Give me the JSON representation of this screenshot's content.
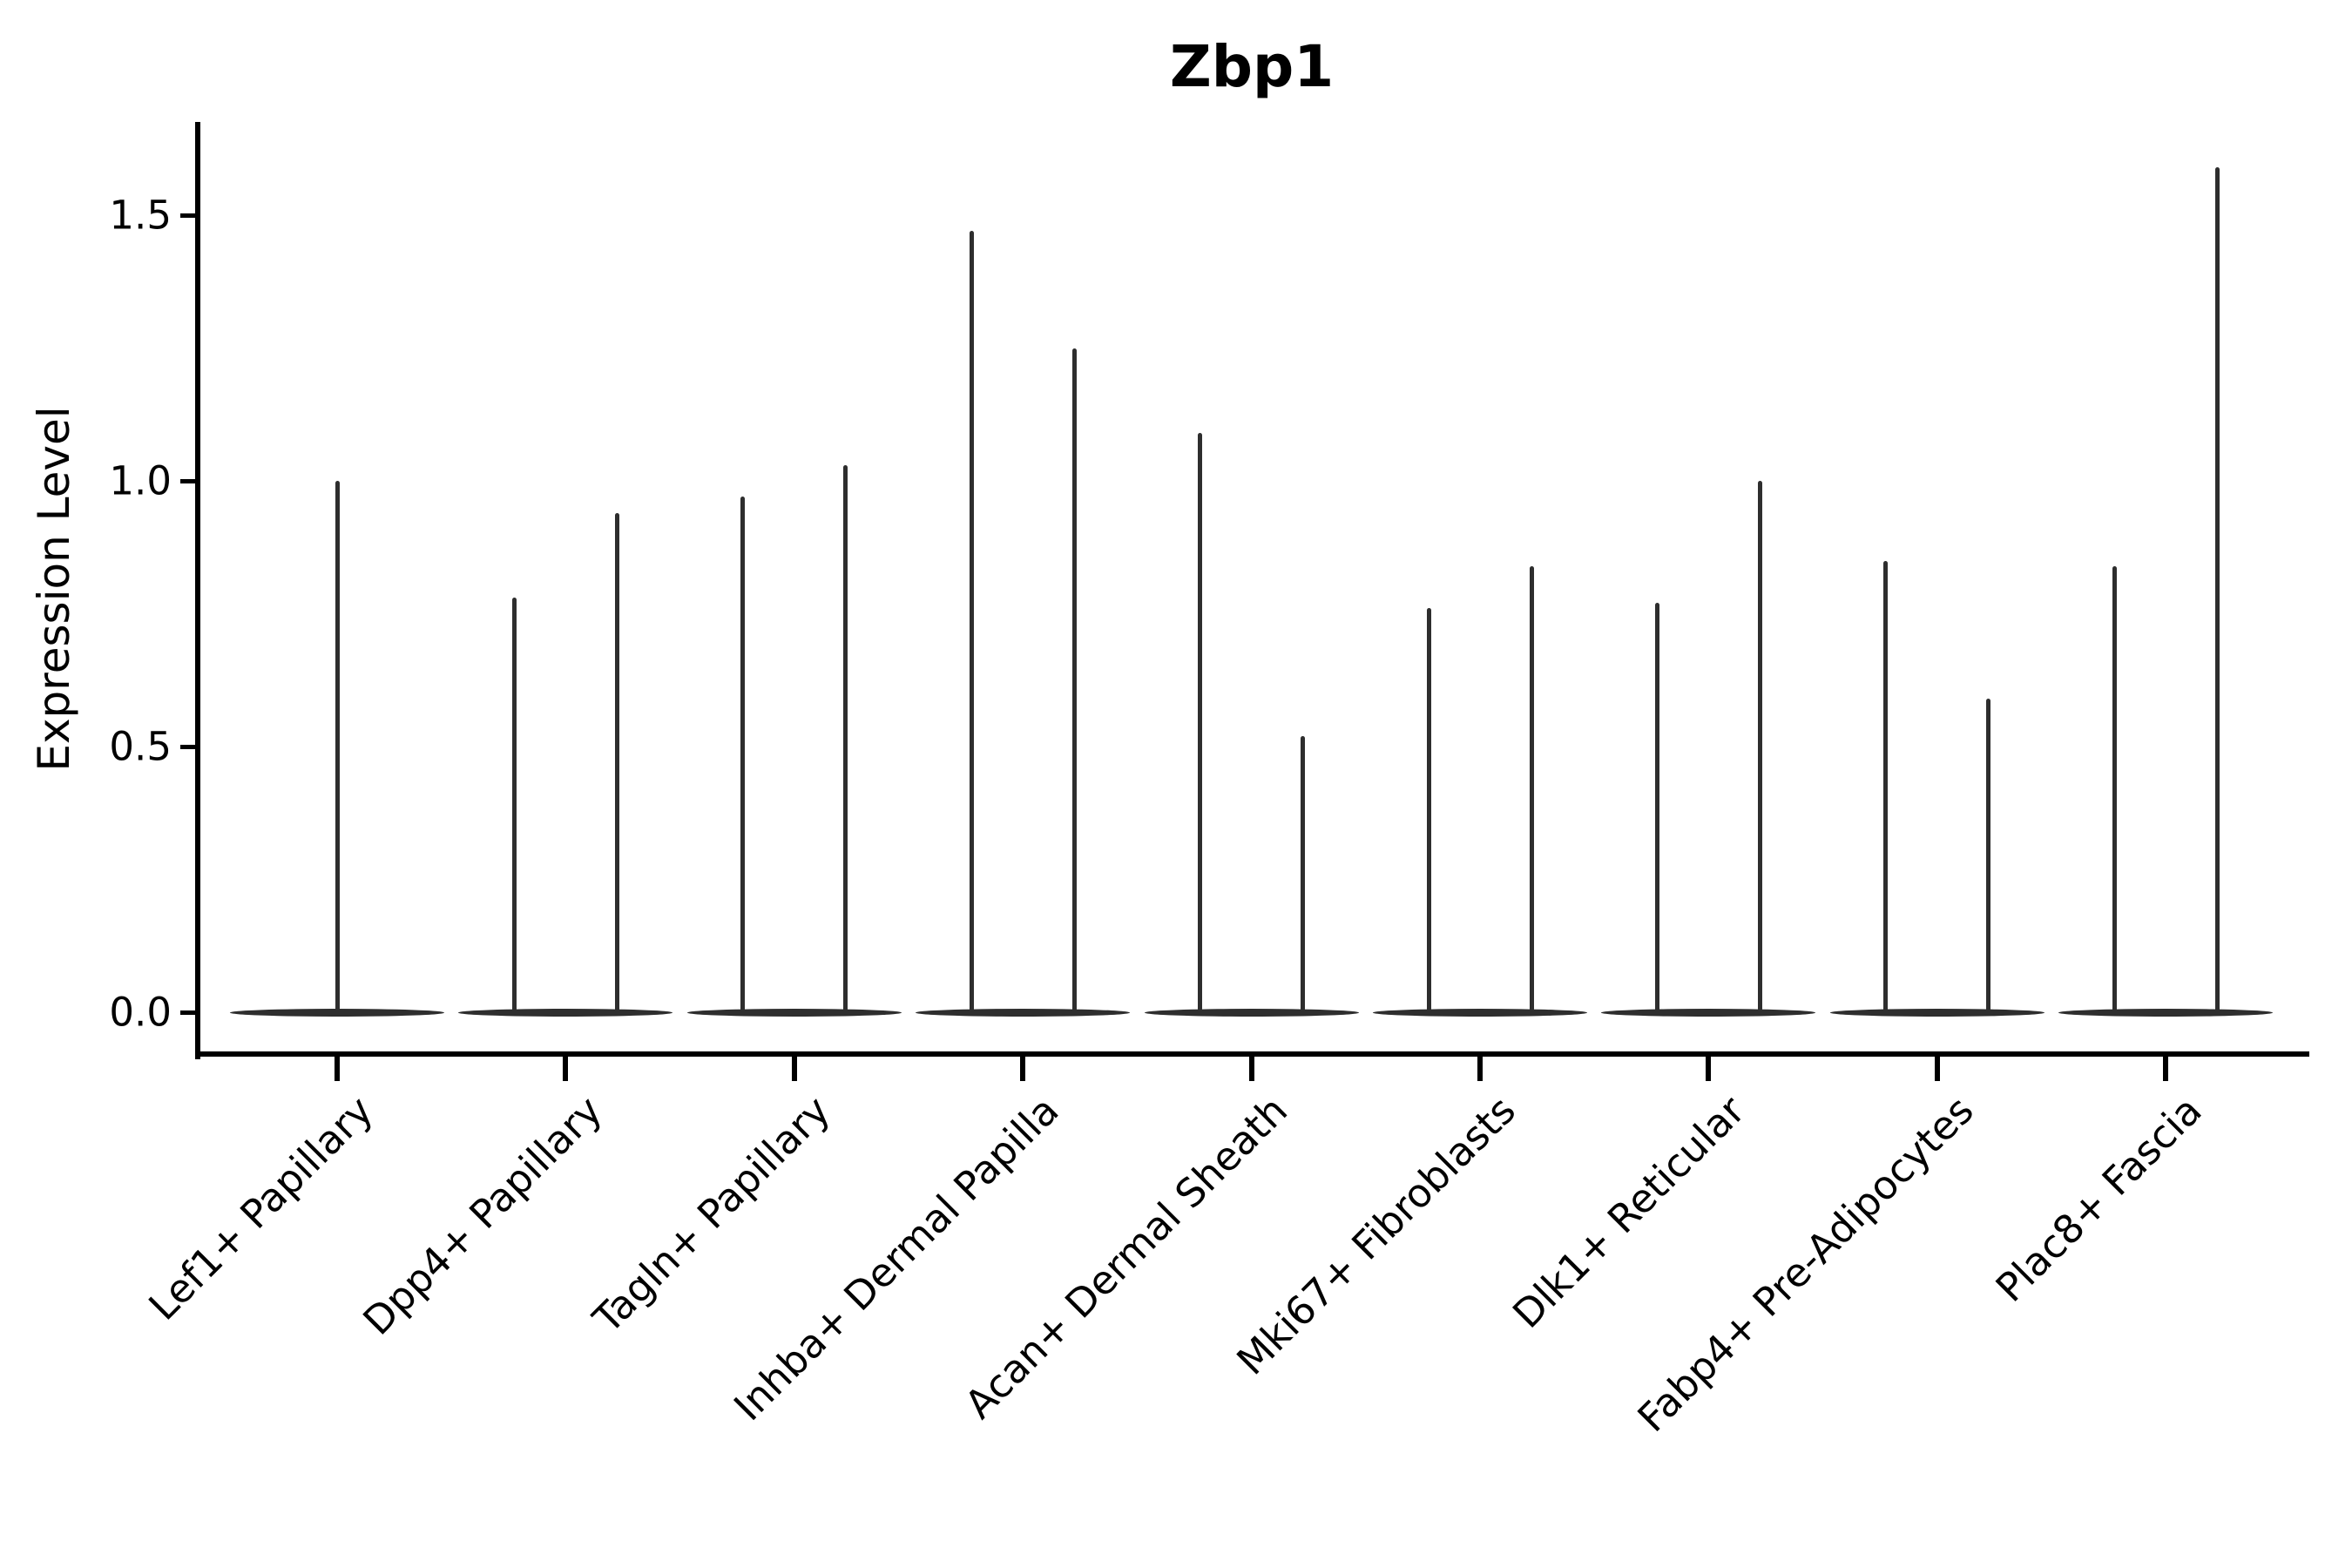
{
  "figure": {
    "title": "Zbp1",
    "ylabel": "Expression Level"
  },
  "chart_data": {
    "type": "violin",
    "title": "Zbp1",
    "xlabel": "",
    "ylabel": "Expression Level",
    "ylim": [
      0,
      1.7
    ],
    "yticks": [
      0.0,
      0.5,
      1.0,
      1.5
    ],
    "grid": false,
    "legend": "none",
    "line_color": "#2e2e2e",
    "axis_color": "#000000",
    "description": "Needle-thin violin distributions; each category has a flat base at expression 0 with thin spikes rising to the maximum expression value.",
    "categories": [
      "Lef1+ Papillary",
      "Dpp4+ Papillary",
      "Tagln+ Papillary",
      "Inhba+ Dermal Papilla",
      "Acan+ Dermal Sheath",
      "Mki67+ Fibroblasts",
      "Dlk1+ Reticular",
      "Fabp4+ Pre-Adipocytes",
      "Plac8+ Fascia"
    ],
    "violins": [
      {
        "category": "Lef1+ Papillary",
        "baseline_value": 0.0,
        "spikes": [
          {
            "position": "center",
            "max": 1.0
          }
        ]
      },
      {
        "category": "Dpp4+ Papillary",
        "baseline_value": 0.0,
        "spikes": [
          {
            "position": "left",
            "max": 0.78
          },
          {
            "position": "right",
            "max": 0.94
          }
        ]
      },
      {
        "category": "Tagln+ Papillary",
        "baseline_value": 0.0,
        "spikes": [
          {
            "position": "left",
            "max": 0.97
          },
          {
            "position": "right",
            "max": 1.03
          }
        ]
      },
      {
        "category": "Inhba+ Dermal Papilla",
        "baseline_value": 0.0,
        "spikes": [
          {
            "position": "left",
            "max": 1.47
          },
          {
            "position": "right",
            "max": 1.25
          }
        ]
      },
      {
        "category": "Acan+ Dermal Sheath",
        "baseline_value": 0.0,
        "spikes": [
          {
            "position": "left",
            "max": 1.09
          },
          {
            "position": "right",
            "max": 0.52
          }
        ]
      },
      {
        "category": "Mki67+ Fibroblasts",
        "baseline_value": 0.0,
        "spikes": [
          {
            "position": "left",
            "max": 0.76
          },
          {
            "position": "right",
            "max": 0.84
          }
        ]
      },
      {
        "category": "Dlk1+ Reticular",
        "baseline_value": 0.0,
        "spikes": [
          {
            "position": "left",
            "max": 0.77
          },
          {
            "position": "right",
            "max": 1.0
          }
        ]
      },
      {
        "category": "Fabp4+ Pre-Adipocytes",
        "baseline_value": 0.0,
        "spikes": [
          {
            "position": "left",
            "max": 0.85
          },
          {
            "position": "right",
            "max": 0.59
          }
        ]
      },
      {
        "category": "Plac8+ Fascia",
        "baseline_value": 0.0,
        "spikes": [
          {
            "position": "left",
            "max": 0.84
          },
          {
            "position": "right",
            "max": 1.59
          }
        ]
      }
    ]
  }
}
